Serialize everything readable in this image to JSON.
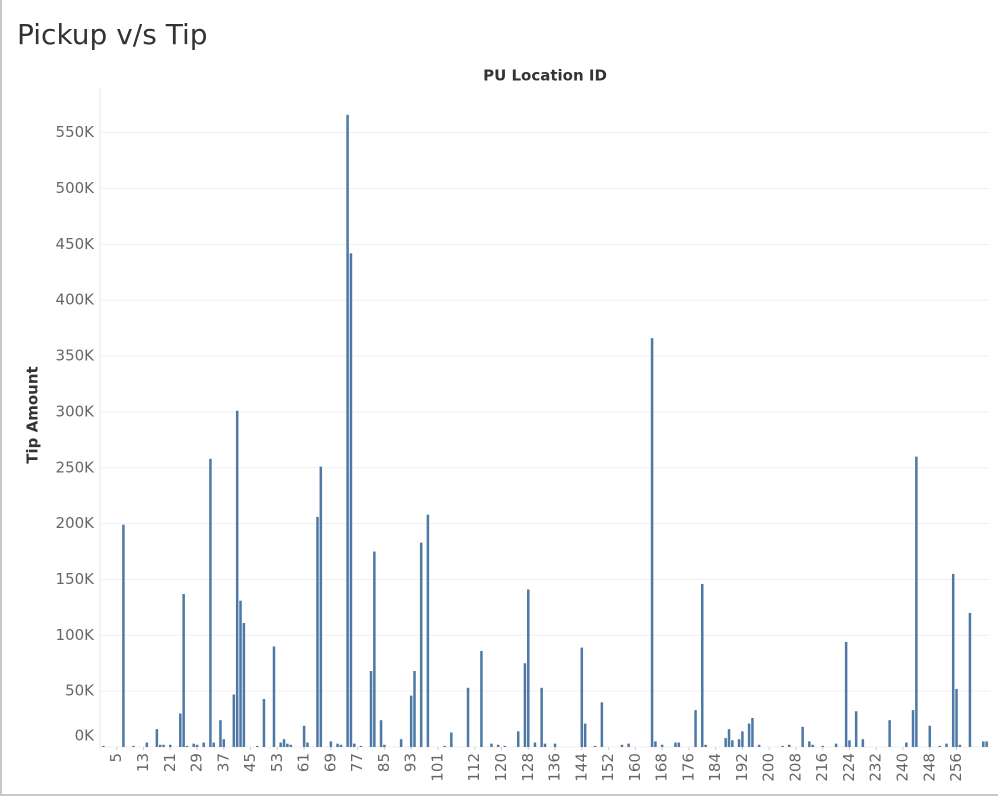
{
  "chart_data": {
    "type": "bar",
    "title": "Pickup v/s Tip",
    "x_label": "PU Location ID",
    "y_label": "Tip Amount",
    "color": "#4e79a7",
    "grid": true,
    "xlim": [
      0,
      266
    ],
    "ylim": [
      0,
      590000
    ],
    "xticks": [
      5,
      13,
      21,
      29,
      37,
      45,
      53,
      61,
      69,
      77,
      85,
      93,
      101,
      112,
      120,
      128,
      136,
      144,
      152,
      160,
      168,
      176,
      184,
      192,
      200,
      208,
      216,
      224,
      232,
      240,
      248,
      256
    ],
    "yticks": [
      {
        "value": 0,
        "label": "0K"
      },
      {
        "value": 50000,
        "label": "50K"
      },
      {
        "value": 100000,
        "label": "100K"
      },
      {
        "value": 150000,
        "label": "150K"
      },
      {
        "value": 200000,
        "label": "200K"
      },
      {
        "value": 250000,
        "label": "250K"
      },
      {
        "value": 300000,
        "label": "300K"
      },
      {
        "value": 350000,
        "label": "350K"
      },
      {
        "value": 400000,
        "label": "400K"
      },
      {
        "value": 450000,
        "label": "450K"
      },
      {
        "value": 500000,
        "label": "500K"
      },
      {
        "value": 550000,
        "label": "550K"
      }
    ],
    "x": [
      1,
      7,
      10,
      14,
      17,
      18,
      19,
      21,
      24,
      25,
      26,
      28,
      29,
      31,
      33,
      34,
      36,
      37,
      40,
      41,
      42,
      43,
      47,
      49,
      52,
      54,
      55,
      56,
      57,
      61,
      62,
      65,
      66,
      69,
      71,
      72,
      74,
      75,
      76,
      78,
      81,
      82,
      84,
      85,
      90,
      93,
      94,
      96,
      98,
      103,
      105,
      110,
      114,
      117,
      119,
      121,
      125,
      127,
      128,
      130,
      132,
      133,
      136,
      144,
      145,
      148,
      150,
      156,
      158,
      165,
      166,
      168,
      172,
      173,
      178,
      180,
      181,
      187,
      188,
      189,
      191,
      192,
      194,
      195,
      197,
      204,
      206,
      210,
      212,
      213,
      216,
      220,
      223,
      224,
      226,
      228,
      236,
      241,
      243,
      244,
      248,
      251,
      253,
      255,
      256,
      257,
      260,
      264,
      265
    ],
    "values": [
      1000,
      199000,
      1000,
      4000,
      16000,
      2000,
      2000,
      2000,
      30000,
      137000,
      1000,
      3000,
      2000,
      4000,
      258000,
      4000,
      24000,
      7000,
      47000,
      301000,
      131000,
      111000,
      1000,
      43000,
      90000,
      4000,
      7000,
      3000,
      2000,
      19000,
      4000,
      206000,
      251000,
      5000,
      3000,
      2000,
      566000,
      442000,
      3000,
      1000,
      68000,
      175000,
      24000,
      2000,
      7000,
      46000,
      68000,
      183000,
      208000,
      1000,
      13000,
      53000,
      86000,
      3000,
      2000,
      1000,
      14000,
      75000,
      141000,
      4000,
      53000,
      3000,
      3000,
      89000,
      21000,
      1000,
      40000,
      2000,
      3000,
      366000,
      5000,
      2000,
      4000,
      4000,
      33000,
      146000,
      2000,
      8000,
      16000,
      6000,
      7000,
      14000,
      21000,
      26000,
      2000,
      1000,
      2000,
      18000,
      5000,
      2000,
      1000,
      3000,
      94000,
      6000,
      32000,
      7000,
      24000,
      4000,
      33000,
      260000,
      19000,
      1000,
      3000,
      155000,
      52000,
      2000,
      120000,
      5000,
      5000
    ]
  }
}
